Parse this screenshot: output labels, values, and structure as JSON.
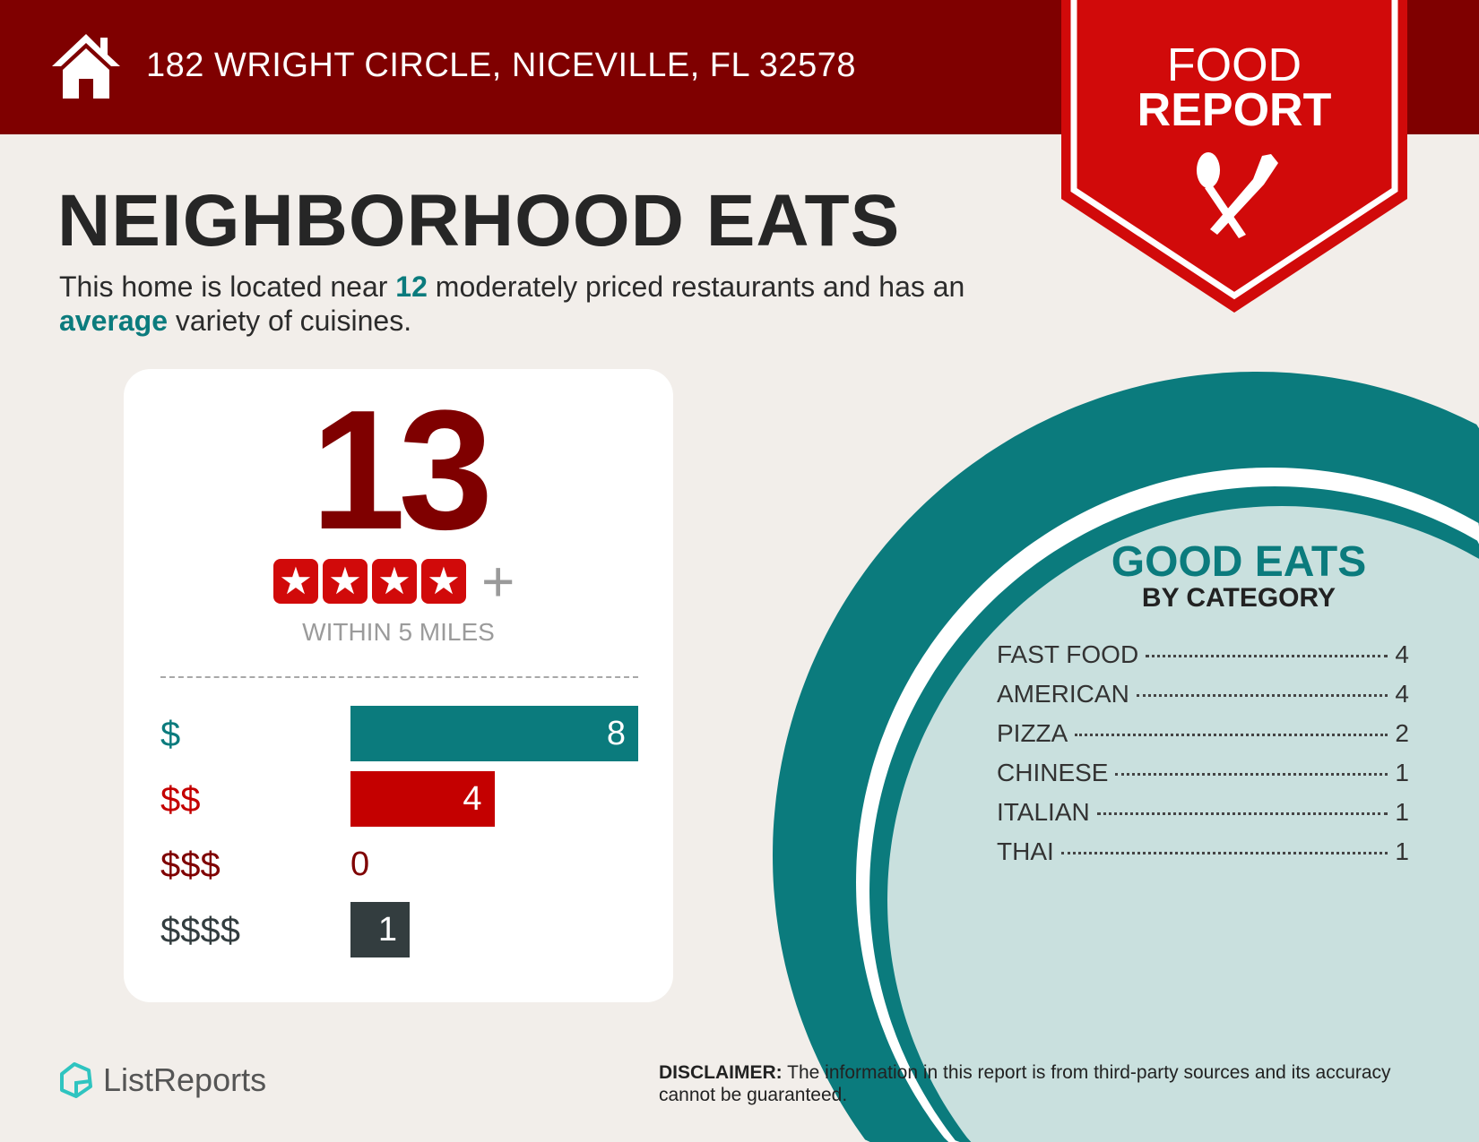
{
  "header": {
    "address": "182 WRIGHT CIRCLE, NICEVILLE, FL 32578",
    "icon": "house-icon"
  },
  "ribbon": {
    "line1": "FOOD",
    "line2": "REPORT",
    "icon": "spoon-fork-icon"
  },
  "title": "NEIGHBORHOOD EATS",
  "description": {
    "p1": "This home is located near ",
    "count": "12",
    "p2": " moderately priced restaurants and has an ",
    "variety": "average",
    "p3": " variety of cuisines."
  },
  "summary": {
    "total": "13",
    "stars": 4,
    "plus": "+",
    "within": "WITHIN 5 MILES"
  },
  "chart_data": {
    "type": "bar",
    "categories": [
      "$",
      "$$",
      "$$$",
      "$$$$"
    ],
    "values": [
      8,
      4,
      0,
      1
    ],
    "colors": [
      "#0b7b7d",
      "#c40000",
      "#7f0000",
      "#333d3f"
    ]
  },
  "good_eats": {
    "title": "GOOD EATS",
    "subtitle": "BY CATEGORY",
    "items": [
      {
        "label": "FAST FOOD",
        "value": "4"
      },
      {
        "label": "AMERICAN",
        "value": "4"
      },
      {
        "label": "PIZZA",
        "value": "2"
      },
      {
        "label": "CHINESE",
        "value": "1"
      },
      {
        "label": "ITALIAN",
        "value": "1"
      },
      {
        "label": "THAI",
        "value": "1"
      }
    ]
  },
  "footer": {
    "logo": "ListReports",
    "disclaimer_label": "DISCLAIMER:",
    "disclaimer": " The information in this report is from third-party sources and its accuracy cannot be guaranteed."
  },
  "colors": {
    "header": "#7f0000",
    "ribbon": "#d10a0a",
    "teal": "#0b7b7d",
    "plate": "#c9e0de",
    "background": "#f2eeea"
  }
}
